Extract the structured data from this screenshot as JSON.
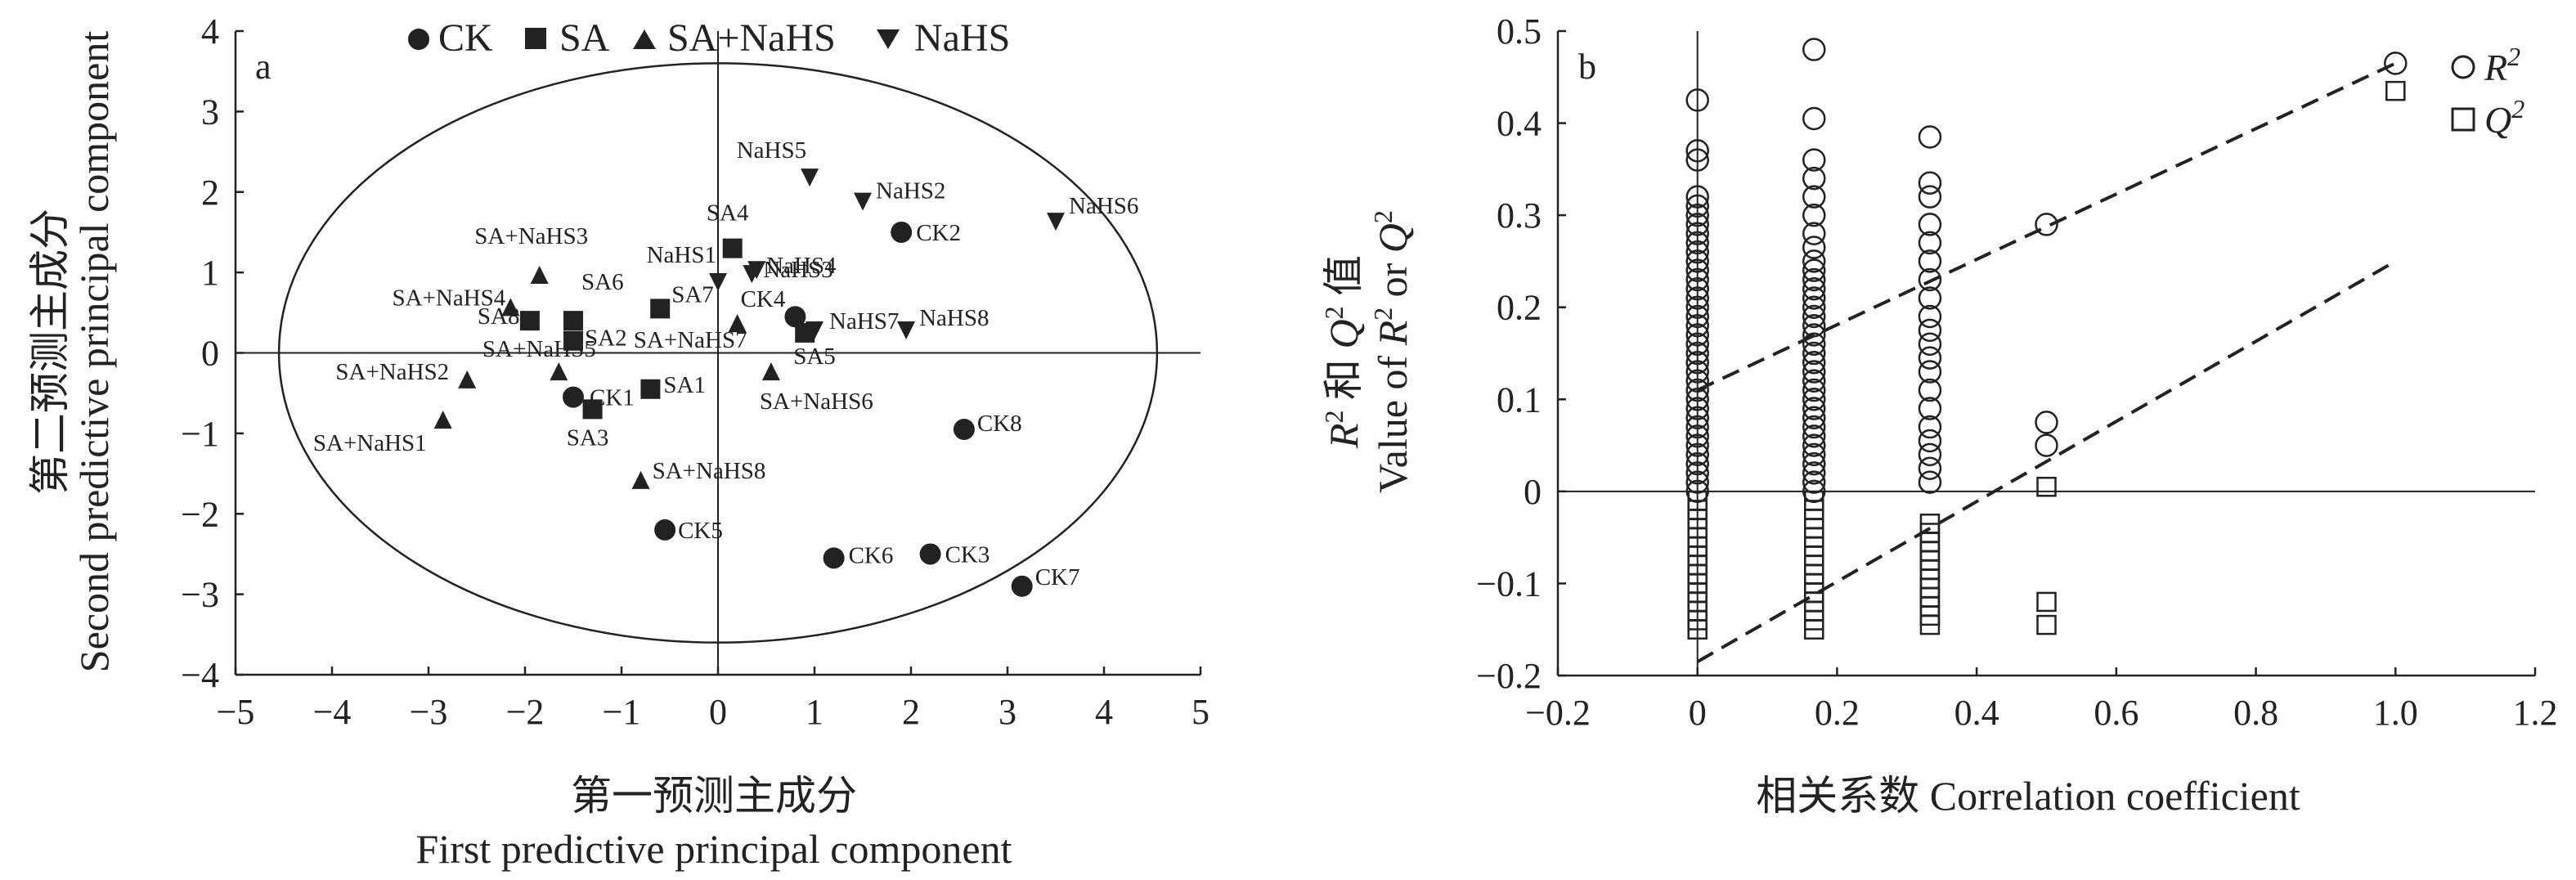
{
  "figure": {
    "colors": {
      "ink": "#222222",
      "background": "#ffffff"
    }
  },
  "chart_data": [
    {
      "type": "scatter",
      "panel_label": "a",
      "xlabel_cn": "第一预测主成分",
      "xlabel_en": "First predictive principal component",
      "ylabel_cn": "第二预测主成分",
      "ylabel_en": "Second predictive principal component",
      "xlim": [
        -5,
        5
      ],
      "ylim": [
        -4,
        4
      ],
      "xticks": [
        "−5",
        "−4",
        "−3",
        "−2",
        "−1",
        "0",
        "1",
        "2",
        "3",
        "4",
        "5"
      ],
      "yticks": [
        "4",
        "3",
        "2",
        "1",
        "0",
        "−1",
        "−2",
        "−3",
        "−4"
      ],
      "reference_lines": {
        "x": 0,
        "y": 0
      },
      "ellipse": {
        "cx": 0,
        "cy": 0,
        "rx": 4.55,
        "ry": 3.6
      },
      "legend": {
        "placement": "top",
        "entries": [
          "CK",
          "SA",
          "SA+NaHS",
          "NaHS"
        ]
      },
      "series": [
        {
          "name": "CK",
          "marker": "circle",
          "points": [
            {
              "label": "CK1",
              "x": -1.5,
              "y": -0.55
            },
            {
              "label": "CK2",
              "x": 1.9,
              "y": 1.5
            },
            {
              "label": "CK3",
              "x": 2.2,
              "y": -2.5
            },
            {
              "label": "CK4",
              "x": 0.8,
              "y": 0.45
            },
            {
              "label": "CK5",
              "x": -0.55,
              "y": -2.2
            },
            {
              "label": "CK6",
              "x": 1.2,
              "y": -2.55
            },
            {
              "label": "CK7",
              "x": 3.15,
              "y": -2.9
            },
            {
              "label": "CK8",
              "x": 2.55,
              "y": -0.95
            }
          ]
        },
        {
          "name": "SA",
          "marker": "square",
          "points": [
            {
              "label": "SA1",
              "x": -0.7,
              "y": -0.45
            },
            {
              "label": "SA2",
              "x": -1.5,
              "y": 0.15
            },
            {
              "label": "SA3",
              "x": -1.3,
              "y": -0.7
            },
            {
              "label": "SA4",
              "x": 0.15,
              "y": 1.3
            },
            {
              "label": "SA5",
              "x": 0.9,
              "y": 0.25
            },
            {
              "label": "SA6",
              "x": -1.5,
              "y": 0.4
            },
            {
              "label": "SA7",
              "x": -0.6,
              "y": 0.55
            },
            {
              "label": "SA8",
              "x": -1.95,
              "y": 0.4
            }
          ]
        },
        {
          "name": "SA+NaHS",
          "marker": "triangle-up",
          "points": [
            {
              "label": "SA+NaHS1",
              "x": -2.85,
              "y": -0.85
            },
            {
              "label": "SA+NaHS2",
              "x": -2.6,
              "y": -0.35
            },
            {
              "label": "SA+NaHS3",
              "x": -1.85,
              "y": 0.95
            },
            {
              "label": "SA+NaHS4",
              "x": -2.15,
              "y": 0.55
            },
            {
              "label": "SA+NaHS5",
              "x": -1.65,
              "y": -0.25
            },
            {
              "label": "SA+NaHS6",
              "x": 0.55,
              "y": -0.25
            },
            {
              "label": "SA+NaHS7",
              "x": 0.2,
              "y": 0.35
            },
            {
              "label": "SA+NaHS8",
              "x": -0.8,
              "y": -1.6
            }
          ]
        },
        {
          "name": "NaHS",
          "marker": "triangle-down",
          "points": [
            {
              "label": "NaHS1",
              "x": 0,
              "y": 0.9
            },
            {
              "label": "NaHS2",
              "x": 1.5,
              "y": 1.9
            },
            {
              "label": "NaHS3",
              "x": 0.35,
              "y": 1.0
            },
            {
              "label": "NaHS4",
              "x": 0.4,
              "y": 1.05
            },
            {
              "label": "NaHS5",
              "x": 0.95,
              "y": 2.2
            },
            {
              "label": "NaHS6",
              "x": 3.5,
              "y": 1.65
            },
            {
              "label": "NaHS7",
              "x": 1.0,
              "y": 0.3
            },
            {
              "label": "NaHS8",
              "x": 1.95,
              "y": 0.3
            }
          ]
        }
      ]
    },
    {
      "type": "scatter",
      "panel_label": "b",
      "xlabel": "相关系数 Correlation coefficient",
      "ylabel_cn": "值",
      "ylabel_en": "Value of",
      "xlim": [
        -0.2,
        1.2
      ],
      "ylim": [
        -0.2,
        0.5
      ],
      "xticks": [
        "−0.2",
        "0",
        "0.2",
        "0.4",
        "0.6",
        "0.8",
        "1.0",
        "1.2"
      ],
      "yticks": [
        "0.5",
        "0.4",
        "0.3",
        "0.2",
        "0.1",
        "0",
        "−0.1",
        "−0.2"
      ],
      "reference_lines": {
        "x": 0,
        "y": 0
      },
      "legend": {
        "placement": "top-right",
        "entries": [
          "R",
          "Q"
        ]
      },
      "series": [
        {
          "name": "R",
          "marker": "open-circle",
          "points": [
            [
              0,
              0.425
            ],
            [
              0,
              0.37
            ],
            [
              0,
              0.36
            ],
            [
              0,
              0.32
            ],
            [
              0,
              0.31
            ],
            [
              0,
              0.3
            ],
            [
              0,
              0.29
            ],
            [
              0,
              0.28
            ],
            [
              0,
              0.27
            ],
            [
              0,
              0.26
            ],
            [
              0,
              0.25
            ],
            [
              0,
              0.24
            ],
            [
              0,
              0.23
            ],
            [
              0,
              0.22
            ],
            [
              0,
              0.21
            ],
            [
              0,
              0.2
            ],
            [
              0,
              0.19
            ],
            [
              0,
              0.18
            ],
            [
              0,
              0.17
            ],
            [
              0,
              0.16
            ],
            [
              0,
              0.15
            ],
            [
              0,
              0.14
            ],
            [
              0,
              0.13
            ],
            [
              0,
              0.12
            ],
            [
              0,
              0.11
            ],
            [
              0,
              0.1
            ],
            [
              0,
              0.09
            ],
            [
              0,
              0.08
            ],
            [
              0,
              0.07
            ],
            [
              0,
              0.06
            ],
            [
              0,
              0.05
            ],
            [
              0,
              0.04
            ],
            [
              0,
              0.03
            ],
            [
              0,
              0.02
            ],
            [
              0,
              0.01
            ],
            [
              0,
              0.0
            ],
            [
              0.167,
              0.48
            ],
            [
              0.167,
              0.405
            ],
            [
              0.167,
              0.36
            ],
            [
              0.167,
              0.34
            ],
            [
              0.167,
              0.32
            ],
            [
              0.167,
              0.3
            ],
            [
              0.167,
              0.28
            ],
            [
              0.167,
              0.265
            ],
            [
              0.167,
              0.25
            ],
            [
              0.167,
              0.24
            ],
            [
              0.167,
              0.23
            ],
            [
              0.167,
              0.22
            ],
            [
              0.167,
              0.21
            ],
            [
              0.167,
              0.2
            ],
            [
              0.167,
              0.19
            ],
            [
              0.167,
              0.18
            ],
            [
              0.167,
              0.17
            ],
            [
              0.167,
              0.16
            ],
            [
              0.167,
              0.15
            ],
            [
              0.167,
              0.14
            ],
            [
              0.167,
              0.13
            ],
            [
              0.167,
              0.12
            ],
            [
              0.167,
              0.11
            ],
            [
              0.167,
              0.1
            ],
            [
              0.167,
              0.09
            ],
            [
              0.167,
              0.08
            ],
            [
              0.167,
              0.07
            ],
            [
              0.167,
              0.06
            ],
            [
              0.167,
              0.05
            ],
            [
              0.167,
              0.04
            ],
            [
              0.167,
              0.03
            ],
            [
              0.167,
              0.02
            ],
            [
              0.167,
              0.01
            ],
            [
              0.167,
              0.0
            ],
            [
              0.333,
              0.385
            ],
            [
              0.333,
              0.335
            ],
            [
              0.333,
              0.32
            ],
            [
              0.333,
              0.29
            ],
            [
              0.333,
              0.27
            ],
            [
              0.333,
              0.25
            ],
            [
              0.333,
              0.23
            ],
            [
              0.333,
              0.21
            ],
            [
              0.333,
              0.19
            ],
            [
              0.333,
              0.175
            ],
            [
              0.333,
              0.16
            ],
            [
              0.333,
              0.145
            ],
            [
              0.333,
              0.13
            ],
            [
              0.333,
              0.11
            ],
            [
              0.333,
              0.09
            ],
            [
              0.333,
              0.07
            ],
            [
              0.333,
              0.055
            ],
            [
              0.333,
              0.04
            ],
            [
              0.333,
              0.025
            ],
            [
              0.333,
              0.01
            ],
            [
              0.5,
              0.29
            ],
            [
              0.5,
              0.075
            ],
            [
              0.5,
              0.05
            ],
            [
              1.0,
              0.465
            ]
          ],
          "fit_line": {
            "x": [
              0,
              1.0
            ],
            "y": [
              0.11,
              0.465
            ]
          }
        },
        {
          "name": "Q",
          "marker": "open-square",
          "points": [
            [
              0,
              -0.01
            ],
            [
              0,
              -0.02
            ],
            [
              0,
              -0.03
            ],
            [
              0,
              -0.04
            ],
            [
              0,
              -0.05
            ],
            [
              0,
              -0.06
            ],
            [
              0,
              -0.07
            ],
            [
              0,
              -0.08
            ],
            [
              0,
              -0.09
            ],
            [
              0,
              -0.1
            ],
            [
              0,
              -0.11
            ],
            [
              0,
              -0.12
            ],
            [
              0,
              -0.13
            ],
            [
              0,
              -0.14
            ],
            [
              0,
              -0.15
            ],
            [
              0.167,
              -0.01
            ],
            [
              0.167,
              -0.02
            ],
            [
              0.167,
              -0.03
            ],
            [
              0.167,
              -0.04
            ],
            [
              0.167,
              -0.05
            ],
            [
              0.167,
              -0.06
            ],
            [
              0.167,
              -0.07
            ],
            [
              0.167,
              -0.08
            ],
            [
              0.167,
              -0.09
            ],
            [
              0.167,
              -0.1
            ],
            [
              0.167,
              -0.11
            ],
            [
              0.167,
              -0.12
            ],
            [
              0.167,
              -0.13
            ],
            [
              0.167,
              -0.14
            ],
            [
              0.167,
              -0.15
            ],
            [
              0.333,
              -0.035
            ],
            [
              0.333,
              -0.045
            ],
            [
              0.333,
              -0.055
            ],
            [
              0.333,
              -0.065
            ],
            [
              0.333,
              -0.075
            ],
            [
              0.333,
              -0.085
            ],
            [
              0.333,
              -0.095
            ],
            [
              0.333,
              -0.105
            ],
            [
              0.333,
              -0.115
            ],
            [
              0.333,
              -0.125
            ],
            [
              0.333,
              -0.135
            ],
            [
              0.333,
              -0.145
            ],
            [
              0.5,
              0.005
            ],
            [
              0.5,
              -0.12
            ],
            [
              0.5,
              -0.145
            ],
            [
              1.0,
              0.435
            ]
          ],
          "fit_line": {
            "x": [
              0,
              1.0
            ],
            "y": [
              -0.185,
              0.25
            ]
          }
        }
      ]
    }
  ]
}
